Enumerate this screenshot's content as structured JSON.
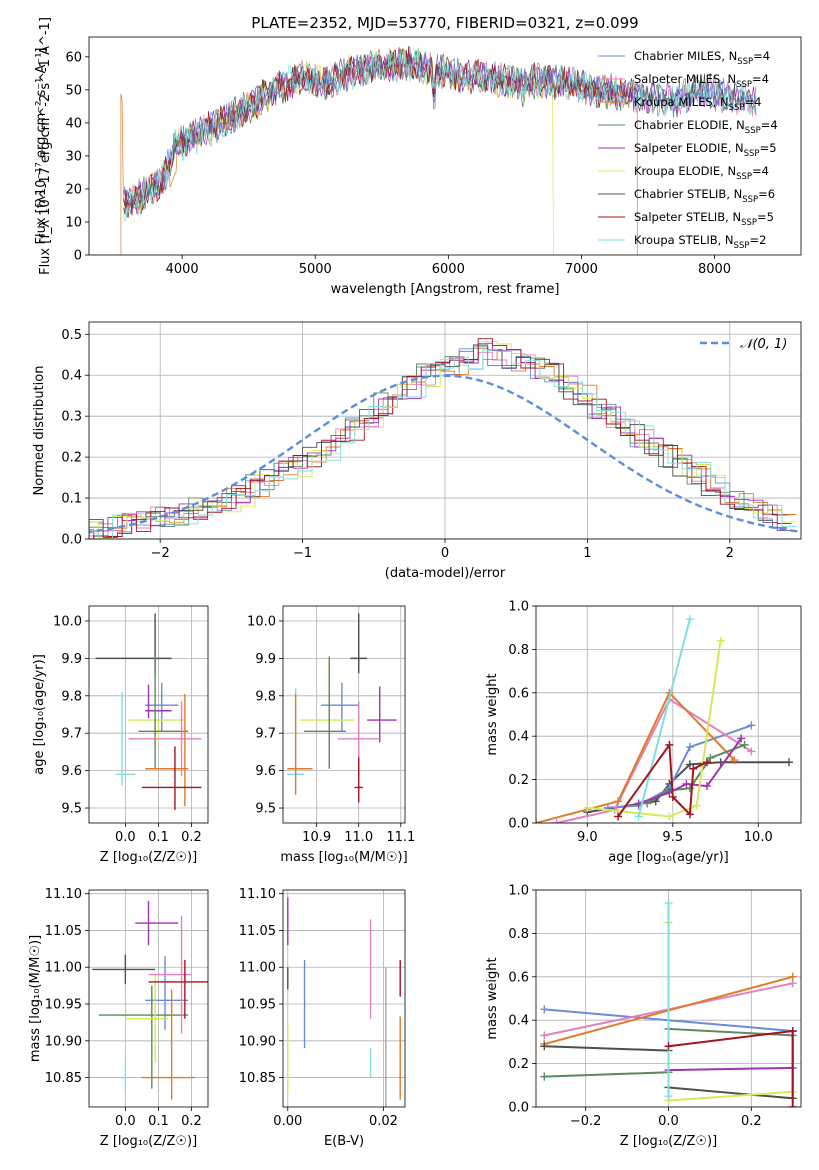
{
  "chart_data": [
    {
      "id": "spectrum",
      "type": "line",
      "title": "PLATE=2352, MJD=53770, FIBERID=0321, z=0.099",
      "xlabel": "wavelength [Angstrom, rest frame]",
      "ylabel": "Flux [f_λ 10^-17 erg cm^-2 s^-1 A^-1]",
      "xlim": [
        3300,
        8650
      ],
      "ylim": [
        0,
        66
      ],
      "xticks": [
        4000,
        5000,
        6000,
        7000,
        8000
      ],
      "yticks": [
        0,
        10,
        20,
        30,
        40,
        50,
        60
      ],
      "grid": false,
      "legend_position": "top-right",
      "spectrum_shape": {
        "x": [
          3550,
          3700,
          3850,
          3950,
          4100,
          4300,
          4500,
          4700,
          4900,
          5100,
          5300,
          5500,
          5700,
          5900,
          6100,
          6300,
          6500,
          6700,
          6900,
          7100,
          7300,
          7500,
          7700,
          7900,
          8100,
          8300
        ],
        "y": [
          15,
          18,
          22,
          33,
          36,
          40,
          45,
          50,
          54,
          52,
          56,
          57,
          58,
          56,
          54,
          54,
          52,
          53,
          52,
          50,
          49,
          48,
          47,
          50,
          48,
          46
        ]
      },
      "series": [
        {
          "name": "Chabrier MILES, N_SSP=4",
          "label_main": "Chabrier MILES, N",
          "label_sub": "SSP",
          "label_tail": "=4",
          "color": "#6a8bd8"
        },
        {
          "name": "Salpeter MILES, N_SSP=4",
          "label_main": "Salpeter MILES, N",
          "label_sub": "SSP",
          "label_tail": "=4",
          "color": "#e57fc0"
        },
        {
          "name": "Kroupa MILES, N_SSP=4",
          "label_main": "Kroupa MILES, N",
          "label_sub": "SSP",
          "label_tail": "=4",
          "color": "#e07b2a"
        },
        {
          "name": "Chabrier ELODIE, N_SSP=4",
          "label_main": "Chabrier ELODIE, N",
          "label_sub": "SSP",
          "label_tail": "=4",
          "color": "#5a8a5e"
        },
        {
          "name": "Salpeter ELODIE, N_SSP=5",
          "label_main": "Salpeter ELODIE, N",
          "label_sub": "SSP",
          "label_tail": "=5",
          "color": "#9b35b0"
        },
        {
          "name": "Kroupa ELODIE, N_SSP=4",
          "label_main": "Kroupa ELODIE, N",
          "label_sub": "SSP",
          "label_tail": "=4",
          "color": "#d6e85a"
        },
        {
          "name": "Chabrier STELIB, N_SSP=6",
          "label_main": "Chabrier STELIB, N",
          "label_sub": "SSP",
          "label_tail": "=6",
          "color": "#4f4f4f"
        },
        {
          "name": "Salpeter STELIB, N_SSP=5",
          "label_main": "Salpeter STELIB, N",
          "label_sub": "SSP",
          "label_tail": "=5",
          "color": "#a5151f"
        },
        {
          "name": "Kroupa STELIB, N_SSP=2",
          "label_main": "Kroupa STELIB, N",
          "label_sub": "SSP",
          "label_tail": "=2",
          "color": "#7fdede"
        }
      ]
    },
    {
      "id": "residuals",
      "type": "histogram",
      "xlabel": "(data-model)/error",
      "ylabel": "Normed distribution",
      "xlim": [
        -2.5,
        2.5
      ],
      "ylim": [
        0,
        0.53
      ],
      "xticks": [
        -2,
        -1,
        0,
        1,
        2
      ],
      "yticks": [
        0.0,
        0.1,
        0.2,
        0.3,
        0.4,
        0.5
      ],
      "grid": true,
      "legend_position": "top-right",
      "reference_curve": {
        "name": "N(0,1)",
        "label": "𝒩(0, 1)",
        "color": "#5b8fd9",
        "style": "dashed"
      },
      "bin_width": 0.1,
      "base_values": [
        0.02,
        0.022,
        0.03,
        0.035,
        0.04,
        0.05,
        0.055,
        0.06,
        0.07,
        0.08,
        0.095,
        0.11,
        0.13,
        0.15,
        0.165,
        0.18,
        0.2,
        0.22,
        0.25,
        0.27,
        0.3,
        0.33,
        0.35,
        0.37,
        0.4,
        0.42,
        0.43,
        0.44,
        0.46,
        0.45,
        0.44,
        0.43,
        0.42,
        0.4,
        0.37,
        0.35,
        0.32,
        0.3,
        0.27,
        0.25,
        0.23,
        0.2,
        0.18,
        0.16,
        0.13,
        0.11,
        0.09,
        0.07,
        0.06,
        0.05
      ],
      "series_colors": [
        "#6a8bd8",
        "#e57fc0",
        "#e07b2a",
        "#5a8a5e",
        "#9b35b0",
        "#d6e85a",
        "#4f4f4f",
        "#a5151f",
        "#7fdede"
      ]
    },
    {
      "id": "age_vs_Z",
      "type": "scatter",
      "xlabel": "Z [log₁₀(Z/Z☉)]",
      "ylabel": "age  [log₁₀(age/yr)]",
      "xlim": [
        -0.11,
        0.25
      ],
      "ylim": [
        9.46,
        10.04
      ],
      "xticks": [
        0.0,
        0.1,
        0.2
      ],
      "yticks": [
        9.5,
        9.6,
        9.7,
        9.8,
        9.9,
        10.0
      ],
      "grid": true,
      "points": [
        {
          "color": "#4f4f4f",
          "x": 0.09,
          "xerr": [
            0.18,
            0.05
          ],
          "y": 9.9,
          "yerr": [
            0.04,
            0.12
          ]
        },
        {
          "color": "#6a8bd8",
          "x": 0.11,
          "xerr": [
            0.05,
            0.05
          ],
          "y": 9.775,
          "yerr": [
            0.07,
            0.06
          ]
        },
        {
          "color": "#9b35b0",
          "x": 0.07,
          "xerr": [
            0.01,
            0.07
          ],
          "y": 9.76,
          "yerr": [
            0.02,
            0.07
          ]
        },
        {
          "color": "#d6e85a",
          "x": 0.1,
          "xerr": [
            0.09,
            0.08
          ],
          "y": 9.735,
          "yerr": [
            0.06,
            0.0
          ]
        },
        {
          "color": "#7fdede",
          "x": -0.01,
          "xerr": [
            0.02,
            0.04
          ],
          "y": 9.59,
          "yerr": [
            0.03,
            0.22
          ]
        },
        {
          "color": "#5a8a5e",
          "x": 0.09,
          "xerr": [
            0.05,
            0.1
          ],
          "y": 9.705,
          "yerr": [
            0.1,
            0.2
          ]
        },
        {
          "color": "#e57fc0",
          "x": 0.17,
          "xerr": [
            0.16,
            0.06
          ],
          "y": 9.685,
          "yerr": [
            0.1,
            0.1
          ]
        },
        {
          "color": "#e07b2a",
          "x": 0.18,
          "xerr": [
            0.12,
            0.01
          ],
          "y": 9.605,
          "yerr": [
            0.1,
            0.2
          ]
        },
        {
          "color": "#a5151f",
          "x": 0.15,
          "xerr": [
            0.1,
            0.08
          ],
          "y": 9.555,
          "yerr": [
            0.06,
            0.11
          ]
        }
      ]
    },
    {
      "id": "age_vs_mass",
      "type": "scatter",
      "xlabel": "mass [log₁₀(M/M☉)]",
      "ylabel": "",
      "xlim": [
        10.82,
        11.11
      ],
      "ylim": [
        9.46,
        10.04
      ],
      "xticks": [
        10.9,
        11.0,
        11.1
      ],
      "yticks": [
        9.5,
        9.6,
        9.7,
        9.8,
        9.9,
        10.0
      ],
      "grid": true,
      "points": [
        {
          "color": "#4f4f4f",
          "x": 11.0,
          "xerr": [
            0.02,
            0.02
          ],
          "y": 9.9,
          "yerr": [
            0.04,
            0.12
          ]
        },
        {
          "color": "#6a8bd8",
          "x": 10.96,
          "xerr": [
            0.05,
            0.04
          ],
          "y": 9.775,
          "yerr": [
            0.07,
            0.06
          ]
        },
        {
          "color": "#9b35b0",
          "x": 11.05,
          "xerr": [
            0.03,
            0.04
          ],
          "y": 9.735,
          "yerr": [
            0.06,
            0.09
          ]
        },
        {
          "color": "#d6e85a",
          "x": 10.93,
          "xerr": [
            0.07,
            0.06
          ],
          "y": 9.735,
          "yerr": [
            0.05,
            0.17
          ]
        },
        {
          "color": "#7fdede",
          "x": 10.85,
          "xerr": [
            0.02,
            0.02
          ],
          "y": 9.59,
          "yerr": [
            0.03,
            0.23
          ]
        },
        {
          "color": "#5a8a5e",
          "x": 10.93,
          "xerr": [
            0.06,
            0.04
          ],
          "y": 9.705,
          "yerr": [
            0.1,
            0.2
          ]
        },
        {
          "color": "#e57fc0",
          "x": 11.0,
          "xerr": [
            0.05,
            0.05
          ],
          "y": 9.685,
          "yerr": [
            0.1,
            0.1
          ]
        },
        {
          "color": "#e07b2a",
          "x": 10.85,
          "xerr": [
            0.02,
            0.04
          ],
          "y": 9.605,
          "yerr": [
            0.07,
            0.2
          ]
        },
        {
          "color": "#a5151f",
          "x": 11.0,
          "xerr": [
            0.01,
            0.01
          ],
          "y": 9.555,
          "yerr": [
            0.04,
            0.08
          ]
        }
      ]
    },
    {
      "id": "weight_vs_age",
      "type": "line",
      "xlabel": "age  [log₁₀(age/yr)]",
      "ylabel": "mass weight",
      "xlim": [
        8.7,
        10.25
      ],
      "ylim": [
        0,
        1.0
      ],
      "xticks": [
        9.0,
        9.5,
        10.0
      ],
      "yticks": [
        0.0,
        0.2,
        0.4,
        0.6,
        0.8,
        1.0
      ],
      "grid": true,
      "series": [
        {
          "color": "#4f4f4f",
          "x": [
            9.0,
            9.4,
            9.48,
            9.6,
            9.78,
            10.18
          ],
          "y": [
            0.05,
            0.1,
            0.18,
            0.27,
            0.28,
            0.28
          ]
        },
        {
          "color": "#6a8bd8",
          "x": [
            9.12,
            9.3,
            9.48,
            9.6,
            9.96
          ],
          "y": [
            0.07,
            0.08,
            0.16,
            0.35,
            0.45
          ]
        },
        {
          "color": "#e57fc0",
          "x": [
            8.82,
            9.16,
            9.48,
            9.96
          ],
          "y": [
            0.0,
            0.06,
            0.57,
            0.33
          ]
        },
        {
          "color": "#e07b2a",
          "x": [
            8.7,
            9.18,
            9.48,
            9.86
          ],
          "y": [
            0.0,
            0.1,
            0.6,
            0.29
          ]
        },
        {
          "color": "#5a8a5e",
          "x": [
            9.35,
            9.47,
            9.6,
            9.72,
            9.92
          ],
          "y": [
            0.09,
            0.15,
            0.16,
            0.3,
            0.36
          ]
        },
        {
          "color": "#9b35b0",
          "x": [
            9.3,
            9.48,
            9.58,
            9.7,
            9.9
          ],
          "y": [
            0.09,
            0.14,
            0.18,
            0.17,
            0.39
          ]
        },
        {
          "color": "#d6e85a",
          "x": [
            9.0,
            9.48,
            9.64,
            9.78
          ],
          "y": [
            0.07,
            0.03,
            0.08,
            0.84
          ]
        },
        {
          "color": "#7fdede",
          "x": [
            9.3,
            9.6
          ],
          "y": [
            0.03,
            0.94
          ]
        },
        {
          "color": "#a5151f",
          "x": [
            9.18,
            9.48,
            9.5,
            9.6,
            9.62,
            9.7
          ],
          "y": [
            0.03,
            0.36,
            0.12,
            0.04,
            0.25,
            0.28
          ]
        }
      ]
    },
    {
      "id": "mass_vs_Z",
      "type": "scatter",
      "xlabel": "Z [log₁₀(Z/Z☉)]",
      "ylabel": "mass [log₁₀(M/M☉)]",
      "xlim": [
        -0.11,
        0.25
      ],
      "ylim": [
        10.81,
        11.105
      ],
      "xticks": [
        0.0,
        0.1,
        0.2
      ],
      "yticks": [
        10.85,
        10.9,
        10.95,
        11.0,
        11.05,
        11.1
      ],
      "grid": true,
      "points": [
        {
          "color": "#4f4f4f",
          "x": 0.0,
          "xerr": [
            0.1,
            0.09
          ],
          "y": 10.997,
          "yerr": [
            0.02,
            0.02
          ]
        },
        {
          "color": "#9b35b0",
          "x": 0.07,
          "xerr": [
            0.04,
            0.09
          ],
          "y": 11.06,
          "yerr": [
            0.03,
            0.03
          ]
        },
        {
          "color": "#6a8bd8",
          "x": 0.12,
          "xerr": [
            0.06,
            0.07
          ],
          "y": 10.955,
          "yerr": [
            0.04,
            0.06
          ]
        },
        {
          "color": "#5a8a5e",
          "x": 0.08,
          "xerr": [
            0.16,
            0.11
          ],
          "y": 10.935,
          "yerr": [
            0.1,
            0.04
          ]
        },
        {
          "color": "#d6e85a",
          "x": 0.09,
          "xerr": [
            0.09,
            0.04
          ],
          "y": 10.93,
          "yerr": [
            0.06,
            0.06
          ]
        },
        {
          "color": "#e57fc0",
          "x": 0.17,
          "xerr": [
            0.1,
            0.03
          ],
          "y": 10.99,
          "yerr": [
            0.08,
            0.08
          ]
        },
        {
          "color": "#a5151f",
          "x": 0.18,
          "xerr": [
            0.11,
            0.07
          ],
          "y": 10.98,
          "yerr": [
            0.05,
            0.03
          ]
        },
        {
          "color": "#e07b2a",
          "x": 0.14,
          "xerr": [
            0.09,
            0.07
          ],
          "y": 10.85,
          "yerr": [
            0.03,
            0.12
          ]
        },
        {
          "color": "#7fdede",
          "x": 0.0,
          "xerr": [
            0.02,
            0.0
          ],
          "y": 10.85,
          "yerr": [
            0.02,
            0.02
          ]
        }
      ]
    },
    {
      "id": "mass_vs_ebv",
      "type": "scatter",
      "xlabel": "E(B-V)",
      "ylabel": "",
      "xlim": [
        -0.001,
        0.0245
      ],
      "ylim": [
        10.81,
        11.105
      ],
      "xticks": [
        0.0,
        0.02
      ],
      "yticks": [
        10.85,
        10.9,
        10.95,
        11.0,
        11.05,
        11.1
      ],
      "grid": true,
      "points": [
        {
          "color": "#4f4f4f",
          "x": 0.0,
          "y": 11.0,
          "yerr": [
            0.03,
            0.0
          ]
        },
        {
          "color": "#9b35b0",
          "x": 0.0,
          "y": 11.06,
          "yerr": [
            0.03,
            0.035
          ]
        },
        {
          "color": "#d6e85a",
          "x": 0.0,
          "y": 10.87,
          "yerr": [
            0.04,
            0.05
          ]
        },
        {
          "color": "#6a8bd8",
          "x": 0.0035,
          "y": 10.95,
          "yerr": [
            0.06,
            0.06
          ]
        },
        {
          "color": "#e57fc0",
          "x": 0.0173,
          "y": 11.0,
          "yerr": [
            0.07,
            0.065
          ]
        },
        {
          "color": "#7fdede",
          "x": 0.0173,
          "y": 10.865,
          "yerr": [
            0.015,
            0.025
          ]
        },
        {
          "color": "#b4a2a8",
          "x": 0.0205,
          "y": 10.9,
          "yerr": [
            0.1,
            0.1
          ]
        },
        {
          "color": "#a5151f",
          "x": 0.0235,
          "y": 10.985,
          "yerr": [
            0.025,
            0.025
          ]
        },
        {
          "color": "#e07b2a",
          "x": 0.0235,
          "y": 10.875,
          "yerr": [
            0.055,
            0.058
          ]
        }
      ]
    },
    {
      "id": "weight_vs_Z",
      "type": "line",
      "xlabel": "Z [log₁₀(Z/Z☉)]",
      "ylabel": "mass weight",
      "xlim": [
        -0.32,
        0.32
      ],
      "ylim": [
        0,
        1.0
      ],
      "xticks": [
        -0.2,
        0.0,
        0.2
      ],
      "yticks": [
        0.0,
        0.2,
        0.4,
        0.6,
        0.8,
        1.0
      ],
      "grid": true,
      "series": [
        {
          "color": "#6a8bd8",
          "x": [
            -0.3,
            0.0,
            0.3
          ],
          "y": [
            0.45,
            0.4,
            0.35
          ]
        },
        {
          "color": "#e57fc0",
          "x": [
            -0.3,
            0.3
          ],
          "y": [
            0.33,
            0.57
          ]
        },
        {
          "color": "#e07b2a",
          "x": [
            -0.3,
            0.3
          ],
          "y": [
            0.29,
            0.6
          ]
        },
        {
          "color": "#4f4f4f",
          "x": [
            -0.3,
            0.0,
            0.0,
            0.3,
            0.3
          ],
          "y": [
            0.28,
            0.26,
            0.09,
            0.04,
            0.35
          ]
        },
        {
          "color": "#5a8a5e",
          "x": [
            -0.3,
            0.0,
            0.0,
            0.3
          ],
          "y": [
            0.14,
            0.16,
            0.36,
            0.33
          ]
        },
        {
          "color": "#9b35b0",
          "x": [
            0.0,
            0.3
          ],
          "y": [
            0.17,
            0.18
          ]
        },
        {
          "color": "#d6e85a",
          "x": [
            0.0,
            0.0,
            0.3
          ],
          "y": [
            0.85,
            0.03,
            0.07
          ]
        },
        {
          "color": "#7fdede",
          "x": [
            0.0,
            0.0
          ],
          "y": [
            0.05,
            0.94
          ]
        },
        {
          "color": "#a5151f",
          "x": [
            0.0,
            0.3,
            0.3
          ],
          "y": [
            0.28,
            0.35,
            0.0
          ]
        }
      ]
    }
  ]
}
